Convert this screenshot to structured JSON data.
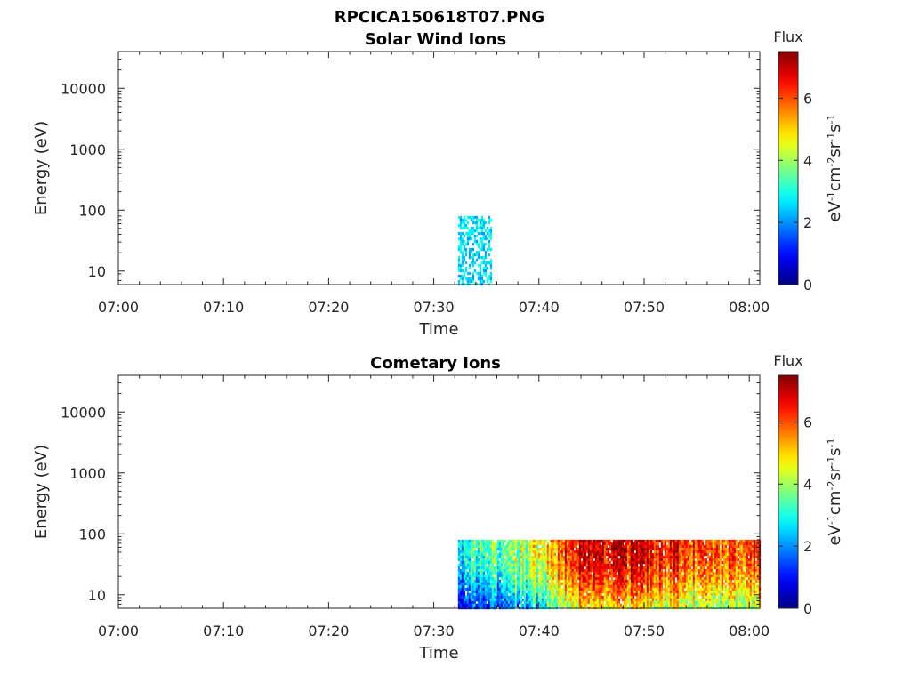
{
  "figure_title": "RPCICA150618T07.PNG",
  "chart_data": [
    {
      "type": "heatmap",
      "title": "Solar Wind Ions",
      "xlabel": "Time",
      "ylabel": "Energy (eV)",
      "x_ticks": [
        "07:00",
        "07:10",
        "07:20",
        "07:30",
        "07:40",
        "07:50",
        "08:00"
      ],
      "y_ticks": [
        "10",
        "100",
        "1000",
        "10000"
      ],
      "y_scale": "log",
      "ylim": [
        6,
        40000
      ],
      "xlim_minutes": [
        0,
        61
      ],
      "colorbar": {
        "title": "Flux",
        "label": "eV-1cm-2sr-1s-1",
        "label_parts": [
          {
            "t": "eV"
          },
          {
            "t": "-1",
            "sup": true
          },
          {
            "t": "cm"
          },
          {
            "t": "-2",
            "sup": true
          },
          {
            "t": "sr"
          },
          {
            "t": "-1",
            "sup": true
          },
          {
            "t": "s"
          },
          {
            "t": "-1",
            "sup": true
          }
        ],
        "ticks": [
          "0",
          "2",
          "4",
          "6"
        ],
        "range": [
          0,
          7.5
        ],
        "colormap": "jet"
      },
      "data_region": {
        "time_start_min": 32.3,
        "time_end_min": 35.4,
        "energy_min_eV": 6,
        "energy_max_eV": 80,
        "flux_typical": [
          2.0,
          3.2
        ],
        "coverage": 0.55
      }
    },
    {
      "type": "heatmap",
      "title": "Cometary Ions",
      "xlabel": "Time",
      "ylabel": "Energy (eV)",
      "x_ticks": [
        "07:00",
        "07:10",
        "07:20",
        "07:30",
        "07:40",
        "07:50",
        "08:00"
      ],
      "y_ticks": [
        "10",
        "100",
        "1000",
        "10000"
      ],
      "y_scale": "log",
      "ylim": [
        6,
        40000
      ],
      "xlim_minutes": [
        0,
        61
      ],
      "colorbar": {
        "title": "Flux",
        "label": "eV-1cm-2sr-1s-1",
        "label_parts": [
          {
            "t": "eV"
          },
          {
            "t": "-1",
            "sup": true
          },
          {
            "t": "cm"
          },
          {
            "t": "-2",
            "sup": true
          },
          {
            "t": "sr"
          },
          {
            "t": "-1",
            "sup": true
          },
          {
            "t": "s"
          },
          {
            "t": "-1",
            "sup": true
          }
        ],
        "ticks": [
          "0",
          "2",
          "4",
          "6"
        ],
        "range": [
          0,
          7.5
        ],
        "colormap": "jet"
      },
      "data_region": {
        "time_start_min": 32.3,
        "time_end_min": 61,
        "energy_min_eV": 6,
        "energy_max_eV": 80,
        "flux_by_time": [
          {
            "t": 32.3,
            "flux": 3.0
          },
          {
            "t": 36,
            "flux": 3.6
          },
          {
            "t": 40,
            "flux": 4.6
          },
          {
            "t": 43,
            "flux": 6.6
          },
          {
            "t": 50,
            "flux": 6.8
          },
          {
            "t": 56,
            "flux": 6.0
          },
          {
            "t": 61,
            "flux": 6.4
          }
        ],
        "coverage": 0.96
      }
    }
  ]
}
